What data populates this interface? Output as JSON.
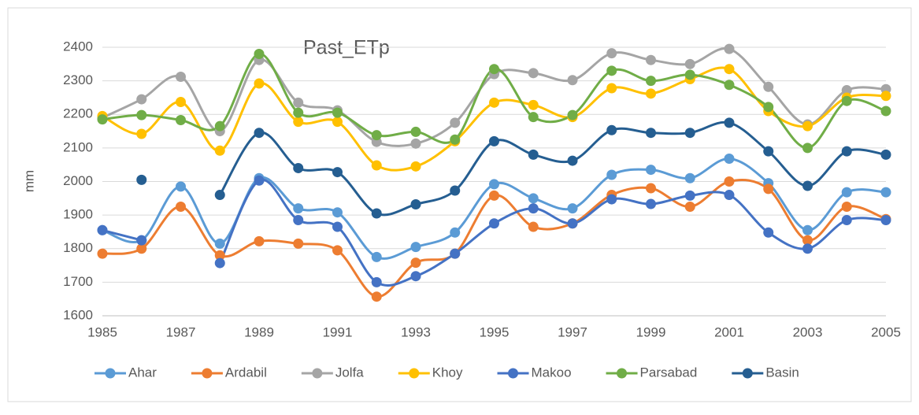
{
  "chart_data": {
    "type": "line",
    "title": "Past_ETp",
    "y_label": "mm",
    "x": [
      1985,
      1986,
      1987,
      1988,
      1989,
      1990,
      1991,
      1992,
      1993,
      1994,
      1995,
      1996,
      1997,
      1998,
      1999,
      2000,
      2001,
      2002,
      2003,
      2004,
      2005
    ],
    "xlim": [
      1985,
      2005
    ],
    "xticks": [
      1985,
      1987,
      1989,
      1991,
      1993,
      1995,
      1997,
      1999,
      2001,
      2003,
      2005
    ],
    "ylim": [
      1600,
      2400
    ],
    "yticks": [
      1600,
      1700,
      1800,
      1900,
      2000,
      2100,
      2200,
      2300,
      2400
    ],
    "grid": true,
    "smooth": true,
    "legend": "bottom",
    "series": [
      {
        "name": "Ahar",
        "color": "#5b9bd5",
        "values": [
          1855,
          1825,
          1985,
          1815,
          2010,
          1920,
          1908,
          1775,
          1805,
          1848,
          1992,
          1950,
          1920,
          2020,
          2035,
          2010,
          2068,
          1995,
          1855,
          1968,
          1968
        ]
      },
      {
        "name": "Ardabil",
        "color": "#ed7d31",
        "values": [
          1785,
          1800,
          1925,
          1780,
          1822,
          1815,
          1795,
          1657,
          1758,
          1785,
          1958,
          1865,
          1875,
          1960,
          1980,
          1925,
          2000,
          1978,
          1825,
          1925,
          1888
        ]
      },
      {
        "name": "Jolfa",
        "color": "#a5a5a5",
        "values": [
          2190,
          2245,
          2312,
          2150,
          2362,
          2235,
          2212,
          2118,
          2113,
          2175,
          2320,
          2323,
          2302,
          2382,
          2362,
          2350,
          2395,
          2282,
          2170,
          2272,
          2275
        ]
      },
      {
        "name": "Khoy",
        "color": "#ffc000",
        "values": [
          2195,
          2142,
          2237,
          2092,
          2292,
          2178,
          2178,
          2048,
          2045,
          2120,
          2235,
          2228,
          2192,
          2278,
          2262,
          2305,
          2335,
          2210,
          2165,
          2250,
          2255
        ]
      },
      {
        "name": "Makoo",
        "color": "#4472c4",
        "values": [
          1855,
          1825,
          null,
          1757,
          2003,
          1885,
          1865,
          1700,
          1718,
          1785,
          1875,
          1920,
          1875,
          1947,
          1933,
          1958,
          1960,
          1848,
          1800,
          1885,
          1885
        ]
      },
      {
        "name": "Parsabad",
        "color": "#70ad47",
        "values": [
          2185,
          2198,
          2183,
          2165,
          2380,
          2205,
          2205,
          2138,
          2148,
          2125,
          2335,
          2192,
          2198,
          2330,
          2300,
          2318,
          2288,
          2222,
          2100,
          2240,
          2210
        ]
      },
      {
        "name": "Basin",
        "color": "#255e91",
        "values": [
          null,
          2005,
          null,
          1960,
          2145,
          2040,
          2028,
          1905,
          1932,
          1973,
          2120,
          2080,
          2062,
          2153,
          2145,
          2145,
          2175,
          2090,
          1987,
          2090,
          2080
        ]
      }
    ]
  }
}
